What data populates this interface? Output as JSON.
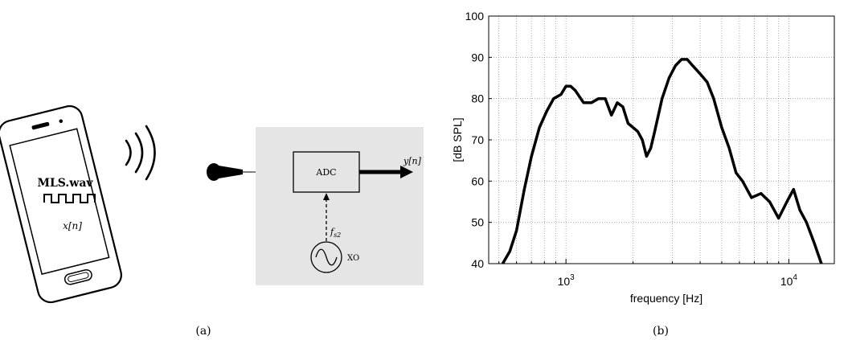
{
  "panel_a": {
    "caption": "(a)",
    "phone": {
      "file_label": "MLS.wav",
      "signal_label": "x[n]",
      "icons": [
        "smartphone-icon",
        "square-wave-icon",
        "sound-waves-icon"
      ]
    },
    "microphone_icon": "microphone-icon",
    "adc_label": "ADC",
    "output_label": "y[n]",
    "clock_label": "f_s2",
    "oscillator_label": "XO",
    "oscillator_icon": "sine-wave-icon",
    "colors": {
      "box_fill": "#e5e5e5",
      "line": "#000000"
    }
  },
  "panel_b": {
    "caption": "(b)",
    "chart_data": {
      "type": "line",
      "xlabel": "frequency [Hz]",
      "ylabel": "[dB SPL]",
      "xscale": "log",
      "xlim": [
        450,
        16000
      ],
      "ylim": [
        40,
        100
      ],
      "yticks": [
        40,
        50,
        60,
        70,
        80,
        90,
        100
      ],
      "xtick_labels": [
        "10^3",
        "10^4"
      ],
      "grid": true,
      "series": [
        {
          "color": "#000000",
          "x": [
            520,
            560,
            600,
            650,
            700,
            760,
            820,
            880,
            950,
            1000,
            1050,
            1100,
            1200,
            1300,
            1400,
            1500,
            1600,
            1700,
            1800,
            1900,
            2000,
            2100,
            2200,
            2300,
            2400,
            2500,
            2700,
            2900,
            3100,
            3300,
            3500,
            3700,
            4000,
            4300,
            4600,
            5000,
            5400,
            5800,
            6200,
            6800,
            7500,
            8200,
            9000,
            9800,
            10500,
            11200,
            12000,
            13000,
            14000
          ],
          "y": [
            40,
            43,
            48,
            58,
            66,
            73,
            77,
            80,
            81,
            83,
            83,
            82,
            79,
            79,
            80,
            80,
            76,
            79,
            78,
            74,
            73,
            72,
            70,
            66,
            68,
            72,
            80,
            85,
            88,
            89.5,
            89.5,
            88,
            86,
            84,
            80,
            73,
            68,
            62,
            60,
            56,
            57,
            55,
            51,
            55,
            58,
            53,
            50,
            45,
            40
          ]
        }
      ]
    }
  }
}
